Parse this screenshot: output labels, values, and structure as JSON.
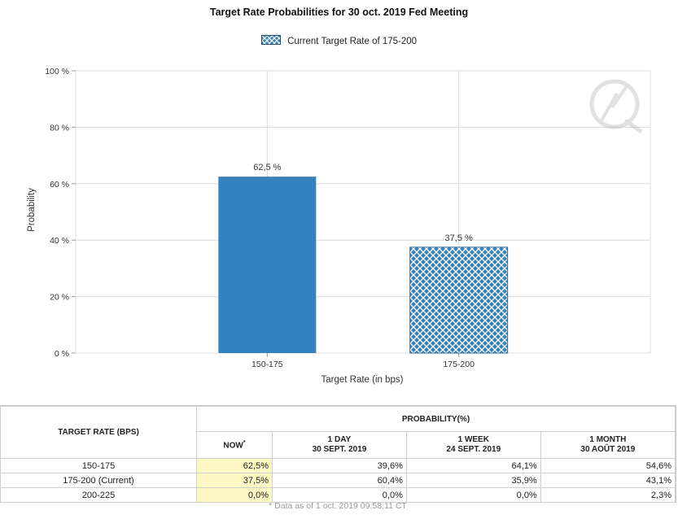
{
  "chart_data": {
    "type": "bar",
    "title": "Target Rate Probabilities for 30 oct. 2019 Fed Meeting",
    "legend": "Current Target Rate of 175-200",
    "xlabel": "Target Rate (in bps)",
    "ylabel": "Probability",
    "categories": [
      "150-175",
      "175-200"
    ],
    "values": [
      62.5,
      37.5
    ],
    "data_labels": [
      "62,5 %",
      "37,5 %"
    ],
    "ylim": [
      0,
      100
    ],
    "yticks": [
      0,
      20,
      40,
      60,
      80,
      100
    ],
    "ytick_labels": [
      "0 %",
      "20 %",
      "40 %",
      "60 %",
      "80 %",
      "100 %"
    ],
    "current_category": "175-200",
    "colors": {
      "bar": "#3481bd",
      "hatch_bg": "#3481bd",
      "hatch_fg": "#ffffff",
      "grid": "#dcdcdc"
    }
  },
  "table": {
    "target_header": "TARGET RATE (BPS)",
    "prob_header": "PROBABILITY(%)",
    "columns": [
      {
        "line1": "NOW",
        "line2": "",
        "star": "*"
      },
      {
        "line1": "1 DAY",
        "line2": "30 SEPT. 2019"
      },
      {
        "line1": "1 WEEK",
        "line2": "24 SEPT. 2019"
      },
      {
        "line1": "1 MONTH",
        "line2": "30 AOÛT 2019"
      }
    ],
    "rows": [
      {
        "rate": "150-175",
        "values": [
          "62,5%",
          "39,6%",
          "64,1%",
          "54,6%"
        ]
      },
      {
        "rate": "175-200 (Current)",
        "values": [
          "37,5%",
          "60,4%",
          "35,9%",
          "43,1%"
        ]
      },
      {
        "rate": "200-225",
        "values": [
          "0,0%",
          "0,0%",
          "0,0%",
          "2,3%"
        ]
      }
    ],
    "footnote": "* Data as of 1 oct. 2019 09:58:11 CT"
  }
}
